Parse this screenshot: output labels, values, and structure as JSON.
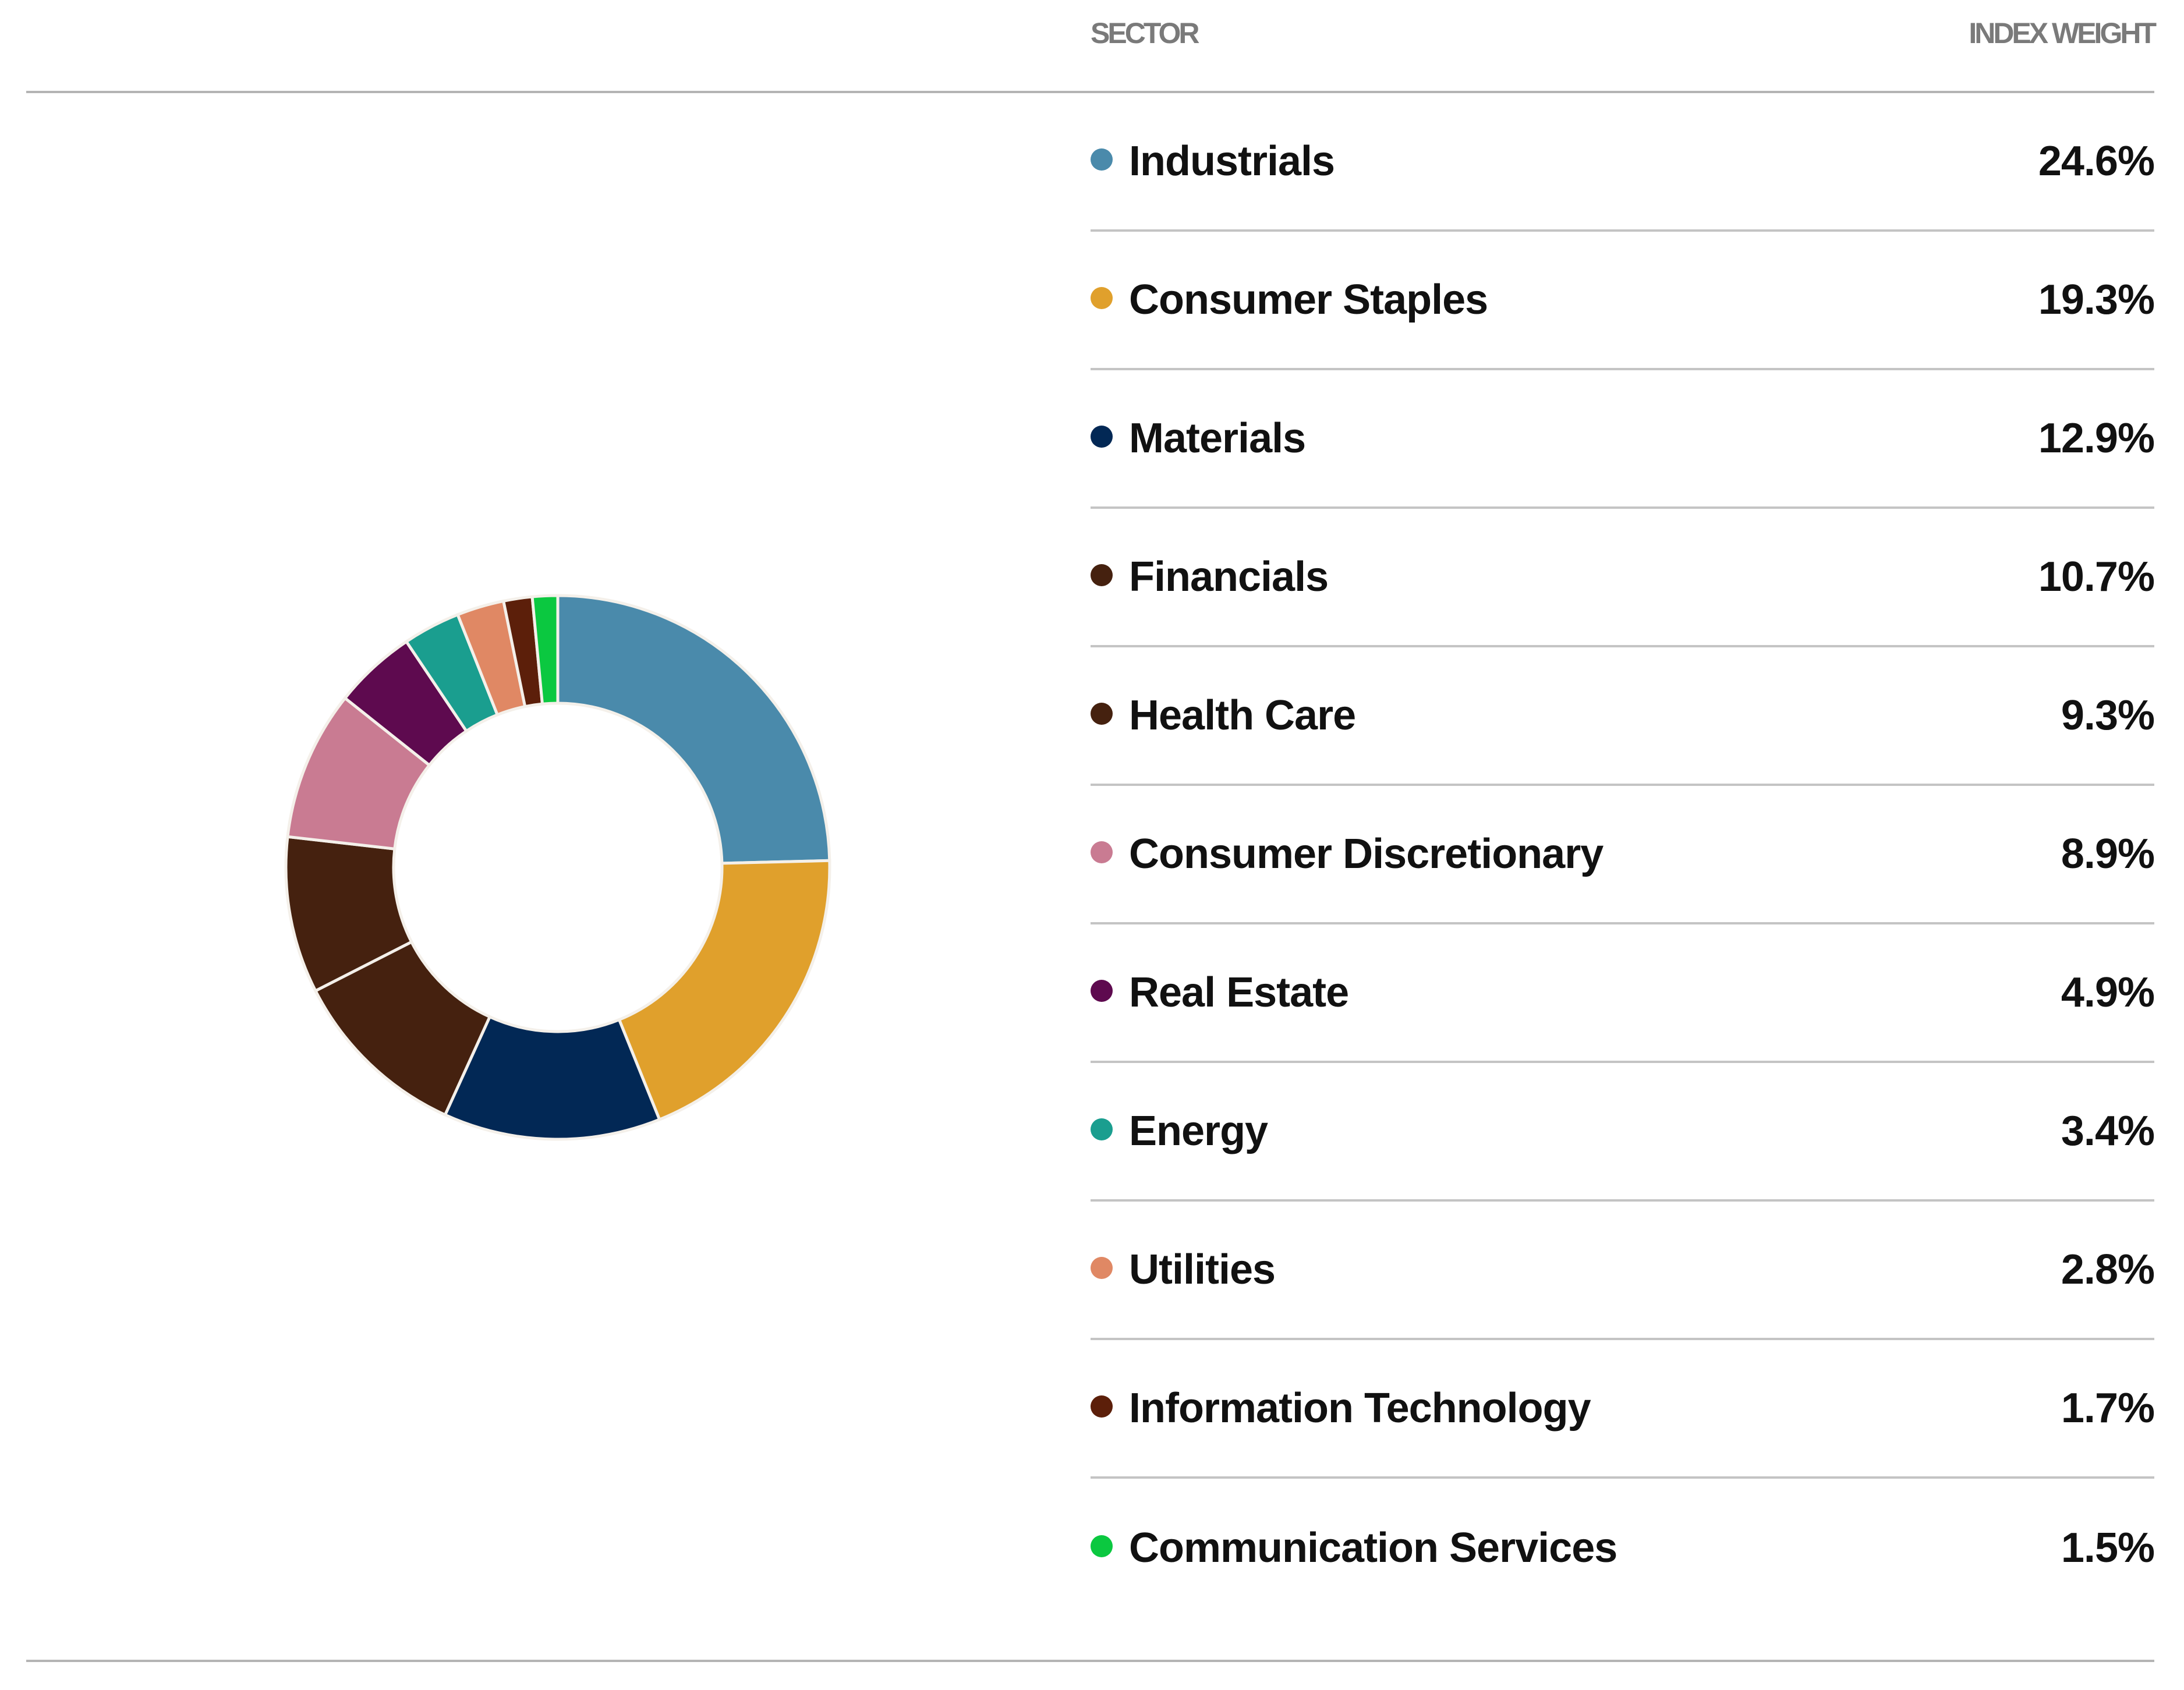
{
  "table": {
    "header_sector": "SECTOR",
    "header_weight": "INDEX WEIGHT",
    "rows": [
      {
        "label": "Industrials",
        "value": "24.6%",
        "color": "#4a8aab"
      },
      {
        "label": "Consumer Staples",
        "value": "19.3%",
        "color": "#e0a02c"
      },
      {
        "label": "Materials",
        "value": "12.9%",
        "color": "#022855"
      },
      {
        "label": "Financials",
        "value": "10.7%",
        "color": "#45210f"
      },
      {
        "label": "Health Care",
        "value": "9.3%",
        "color": "#45210f"
      },
      {
        "label": "Consumer Discretionary",
        "value": "8.9%",
        "color": "#c97b92"
      },
      {
        "label": "Real Estate",
        "value": "4.9%",
        "color": "#5e0a4f"
      },
      {
        "label": "Energy",
        "value": "3.4%",
        "color": "#1a9e8f"
      },
      {
        "label": "Utilities",
        "value": "2.8%",
        "color": "#e08864"
      },
      {
        "label": "Information Technology",
        "value": "1.7%",
        "color": "#5c1f0a"
      },
      {
        "label": "Communication Services",
        "value": "1.5%",
        "color": "#0bc840"
      }
    ]
  },
  "chart_data": {
    "type": "pie",
    "subtype": "donut",
    "title": "",
    "categories": [
      "Industrials",
      "Consumer Staples",
      "Materials",
      "Financials",
      "Health Care",
      "Consumer Discretionary",
      "Real Estate",
      "Energy",
      "Utilities",
      "Information Technology",
      "Communication Services"
    ],
    "values": [
      24.6,
      19.3,
      12.9,
      10.7,
      9.3,
      8.9,
      4.9,
      3.4,
      2.8,
      1.7,
      1.5
    ],
    "colors": [
      "#4a8aab",
      "#e0a02c",
      "#022855",
      "#45210f",
      "#45210f",
      "#c97b92",
      "#5e0a4f",
      "#1a9e8f",
      "#e08864",
      "#5c1f0a",
      "#0bc840"
    ],
    "unit": "%",
    "start": "top",
    "direction": "clockwise"
  }
}
